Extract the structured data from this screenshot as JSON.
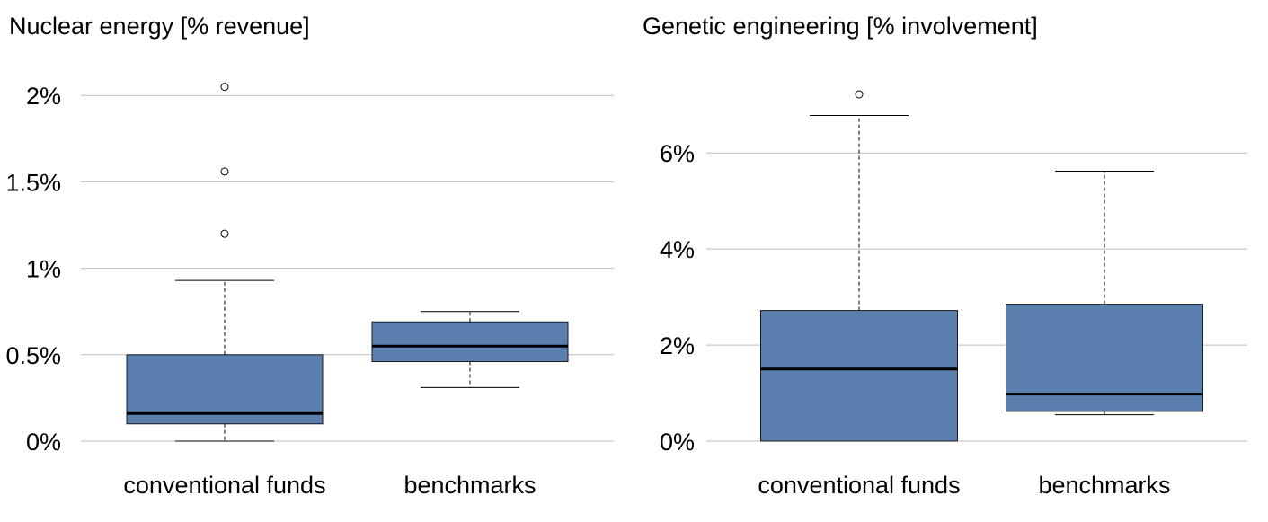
{
  "colors": {
    "box_fill": "#5B80B0",
    "box_stroke": "#1a1a1a",
    "median": "#000000",
    "grid": "#bdbdbd",
    "text": "#000000"
  },
  "chart_data": [
    {
      "type": "box",
      "title": "Nuclear energy [% revenue]",
      "ylim": [
        0,
        2.1
      ],
      "yticks": [
        0,
        0.5,
        1,
        1.5,
        2
      ],
      "ytick_labels": [
        "0%",
        "0.5%",
        "1%",
        "1.5%",
        "2%"
      ],
      "grid": true,
      "categories": [
        "conventional funds",
        "benchmarks"
      ],
      "boxes": [
        {
          "name": "conventional funds",
          "whisker_low": 0.0,
          "q1": 0.1,
          "median": 0.16,
          "q3": 0.5,
          "whisker_high": 0.93,
          "outliers": [
            1.2,
            1.56,
            2.05
          ]
        },
        {
          "name": "benchmarks",
          "whisker_low": 0.31,
          "q1": 0.46,
          "median": 0.55,
          "q3": 0.69,
          "whisker_high": 0.75,
          "outliers": []
        }
      ]
    },
    {
      "type": "box",
      "title": "Genetic engineering [% involvement]",
      "ylim": [
        0,
        7.5
      ],
      "yticks": [
        0,
        2,
        4,
        6
      ],
      "ytick_labels": [
        "0%",
        "2%",
        "4%",
        "6%"
      ],
      "grid": true,
      "categories": [
        "conventional funds",
        "benchmarks"
      ],
      "boxes": [
        {
          "name": "conventional funds",
          "whisker_low": 0.0,
          "q1": 0.0,
          "median": 1.5,
          "q3": 2.72,
          "whisker_high": 6.78,
          "outliers": [
            7.22
          ]
        },
        {
          "name": "benchmarks",
          "whisker_low": 0.55,
          "q1": 0.62,
          "median": 0.98,
          "q3": 2.85,
          "whisker_high": 5.62,
          "outliers": []
        }
      ]
    }
  ]
}
